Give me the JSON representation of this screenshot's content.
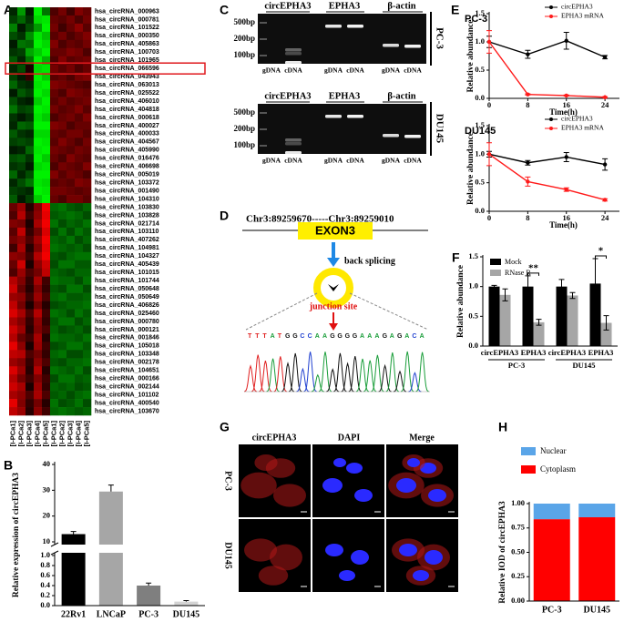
{
  "panel_labels": [
    "A",
    "B",
    "C",
    "D",
    "E",
    "F",
    "G",
    "H"
  ],
  "heatmap": {
    "rows": [
      "hsa_circRNA_000963",
      "hsa_circRNA_000781",
      "hsa_circRNA_101522",
      "hsa_circRNA_000350",
      "hsa_circRNA_405863",
      "hsa_circRNA_100703",
      "hsa_circRNA_101965",
      "hsa_circRNA_066596",
      "hsa_circRNA_043943",
      "hsa_circRNA_063013",
      "hsa_circRNA_025522",
      "hsa_circRNA_406010",
      "hsa_circRNA_404818",
      "hsa_circRNA_000618",
      "hsa_circRNA_400027",
      "hsa_circRNA_400033",
      "hsa_circRNA_404567",
      "hsa_circRNA_405990",
      "hsa_circRNA_016476",
      "hsa_circRNA_406698",
      "hsa_circRNA_005019",
      "hsa_circRNA_103372",
      "hsa_circRNA_001490",
      "hsa_circRNA_104310",
      "hsa_circRNA_103830",
      "hsa_circRNA_103828",
      "hsa_circRNA_021714",
      "hsa_circRNA_103110",
      "hsa_circRNA_407262",
      "hsa_circRNA_104981",
      "hsa_circRNA_104327",
      "hsa_circRNA_405439",
      "hsa_circRNA_101015",
      "hsa_circRNA_101744",
      "hsa_circRNA_050648",
      "hsa_circRNA_050649",
      "hsa_circRNA_406826",
      "hsa_circRNA_025460",
      "hsa_circRNA_000780",
      "hsa_circRNA_000121",
      "hsa_circRNA_001846",
      "hsa_circRNA_105018",
      "hsa_circRNA_103348",
      "hsa_circRNA_002178",
      "hsa_circRNA_104651",
      "hsa_circRNA_000166",
      "hsa_circRNA_002144",
      "hsa_circRNA_101102",
      "hsa_circRNA_400540",
      "hsa_circRNA_103670"
    ],
    "columns": [
      "[I-PCa1]",
      "[I-PCa2]",
      "[I-PCa3]",
      "[I-PCa4]",
      "[I-PCa5]",
      "[I-PCa1]",
      "[I-PCa2]",
      "[I-PCa3]",
      "[I-PCa4]",
      "[I-PCa5]"
    ],
    "range": [
      -2,
      2
    ],
    "colors": [
      "#00ff00",
      "#000000",
      "#ff0000"
    ],
    "highlight_row": 7,
    "highlight_color": "#e0191e",
    "values": [
      [
        -0.3,
        -1.2,
        -0.2,
        -1.9,
        -0.9,
        0.6,
        0.9,
        0.5,
        1.0,
        0.8
      ],
      [
        -0.5,
        -0.8,
        -0.4,
        -1.7,
        -1.8,
        0.8,
        0.7,
        0.9,
        0.6,
        0.9
      ],
      [
        -1.0,
        -0.2,
        -0.6,
        -1.2,
        -1.9,
        0.9,
        0.5,
        0.8,
        1.1,
        0.7
      ],
      [
        -0.6,
        -0.4,
        -1.1,
        -1.8,
        -1.5,
        0.7,
        0.9,
        0.6,
        0.8,
        1.0
      ],
      [
        -0.2,
        -0.9,
        -0.8,
        -1.9,
        -1.7,
        1.0,
        0.6,
        0.8,
        0.7,
        0.9
      ],
      [
        -0.4,
        -0.5,
        -1.3,
        -1.6,
        -1.9,
        0.8,
        0.8,
        1.0,
        0.9,
        0.6
      ],
      [
        -0.7,
        -0.3,
        -0.9,
        -1.9,
        -1.4,
        0.6,
        1.0,
        0.7,
        0.8,
        0.9
      ],
      [
        -0.3,
        -0.6,
        0.2,
        -1.7,
        -1.8,
        0.9,
        0.7,
        0.9,
        0.6,
        0.8
      ],
      [
        -0.5,
        -0.2,
        0.4,
        -1.9,
        -1.6,
        0.7,
        0.8,
        0.6,
        0.9,
        1.0
      ],
      [
        -0.8,
        -0.4,
        -0.3,
        -1.8,
        -1.9,
        1.0,
        0.9,
        0.8,
        0.7,
        0.6
      ],
      [
        -0.2,
        -0.7,
        -0.5,
        -1.9,
        -1.7,
        0.8,
        0.6,
        1.0,
        0.9,
        0.8
      ],
      [
        -0.6,
        -0.3,
        -0.2,
        -1.6,
        -1.9,
        0.7,
        0.9,
        0.7,
        0.8,
        0.9
      ],
      [
        -0.9,
        -0.5,
        -0.6,
        -1.9,
        -1.8,
        0.9,
        0.7,
        0.8,
        1.0,
        0.7
      ],
      [
        -0.4,
        -0.2,
        -0.4,
        -1.8,
        -1.6,
        0.6,
        0.8,
        0.9,
        0.7,
        1.0
      ],
      [
        -0.3,
        -0.8,
        -0.7,
        -1.9,
        -1.9,
        1.0,
        0.9,
        0.6,
        0.8,
        0.8
      ],
      [
        -0.7,
        -0.4,
        -0.3,
        -1.7,
        -1.7,
        0.8,
        0.7,
        0.9,
        0.9,
        0.7
      ],
      [
        -0.5,
        -0.6,
        -0.5,
        -1.9,
        -1.8,
        0.7,
        1.0,
        0.8,
        0.6,
        0.9
      ],
      [
        -0.2,
        -0.3,
        -0.8,
        -1.8,
        -1.9,
        0.9,
        0.8,
        0.7,
        0.9,
        0.8
      ],
      [
        -0.6,
        -0.7,
        -0.4,
        -1.9,
        -1.6,
        0.8,
        0.6,
        1.0,
        0.8,
        0.7
      ],
      [
        -0.4,
        -0.5,
        -0.2,
        -1.7,
        -1.8,
        0.6,
        0.9,
        0.8,
        0.7,
        1.0
      ],
      [
        -0.8,
        -0.3,
        -0.6,
        -1.9,
        -1.9,
        1.0,
        0.7,
        0.9,
        0.8,
        0.6
      ],
      [
        -0.3,
        -0.6,
        -0.9,
        -1.8,
        -1.7,
        0.7,
        0.8,
        0.7,
        1.0,
        0.9
      ],
      [
        -0.5,
        -0.4,
        -0.3,
        -1.9,
        -1.8,
        0.9,
        0.9,
        0.8,
        0.7,
        0.8
      ],
      [
        -0.7,
        -0.2,
        -0.5,
        -1.6,
        -1.9,
        0.8,
        0.6,
        0.9,
        0.9,
        0.7
      ],
      [
        0.8,
        1.2,
        0.3,
        1.0,
        1.9,
        -0.8,
        -0.9,
        -0.7,
        -0.6,
        -0.8
      ],
      [
        0.6,
        1.4,
        0.5,
        1.1,
        1.8,
        -0.7,
        -0.8,
        -0.9,
        -0.8,
        -0.6
      ],
      [
        1.0,
        0.9,
        0.2,
        1.3,
        1.9,
        -0.9,
        -0.6,
        -0.8,
        -0.7,
        -0.9
      ],
      [
        0.7,
        1.5,
        0.4,
        0.9,
        1.7,
        -0.6,
        -0.9,
        -0.6,
        -0.9,
        -0.7
      ],
      [
        0.9,
        1.1,
        0.6,
        1.2,
        1.9,
        -0.8,
        -0.7,
        -0.9,
        -0.6,
        -0.8
      ],
      [
        0.5,
        1.3,
        0.3,
        1.0,
        1.8,
        -0.9,
        -0.8,
        -0.7,
        -0.8,
        -0.6
      ],
      [
        1.1,
        1.0,
        0.5,
        1.4,
        1.9,
        -0.7,
        -0.6,
        -0.8,
        -0.9,
        -0.9
      ],
      [
        0.8,
        1.6,
        0.2,
        1.1,
        1.6,
        -0.6,
        -0.9,
        -0.9,
        -0.7,
        -0.7
      ],
      [
        0.6,
        1.2,
        0.6,
        0.9,
        1.5,
        -0.8,
        -0.7,
        -0.6,
        -0.8,
        -0.8
      ],
      [
        1.4,
        1.0,
        0.4,
        1.3,
        0.5,
        -0.9,
        -0.8,
        -0.8,
        -0.6,
        -0.9
      ],
      [
        1.6,
        0.8,
        0.3,
        1.0,
        0.4,
        -0.7,
        -0.6,
        -0.9,
        -0.9,
        -0.6
      ],
      [
        1.2,
        1.1,
        0.5,
        1.2,
        0.6,
        -0.8,
        -0.9,
        -0.7,
        -0.7,
        -0.8
      ],
      [
        1.5,
        0.9,
        0.2,
        0.9,
        0.3,
        -0.6,
        -0.7,
        -0.8,
        -0.8,
        -0.9
      ],
      [
        1.7,
        1.3,
        0.6,
        1.4,
        0.5,
        -0.9,
        -0.8,
        -0.6,
        -0.9,
        -0.7
      ],
      [
        1.3,
        1.0,
        0.4,
        1.1,
        0.4,
        -0.7,
        -0.9,
        -0.9,
        -0.6,
        -0.8
      ],
      [
        1.6,
        1.2,
        0.3,
        1.0,
        0.6,
        -0.8,
        -0.6,
        -0.7,
        -0.8,
        -0.6
      ],
      [
        1.4,
        0.8,
        0.5,
        1.3,
        0.3,
        -0.9,
        -0.8,
        -0.8,
        -0.7,
        -0.9
      ],
      [
        1.8,
        1.1,
        0.2,
        1.2,
        0.5,
        -0.6,
        -0.7,
        -0.9,
        -0.9,
        -0.7
      ],
      [
        1.5,
        1.4,
        0.6,
        0.9,
        0.4,
        -0.8,
        -0.9,
        -0.6,
        -0.6,
        -0.8
      ],
      [
        1.2,
        1.0,
        0.4,
        1.1,
        0.6,
        -0.7,
        -0.6,
        -0.8,
        -0.8,
        -0.9
      ],
      [
        1.7,
        1.2,
        0.3,
        1.4,
        0.3,
        -0.9,
        -0.8,
        -0.7,
        -0.9,
        -0.6
      ],
      [
        1.4,
        0.9,
        0.5,
        1.0,
        0.5,
        -0.6,
        -0.9,
        -0.9,
        -0.7,
        -0.8
      ],
      [
        1.6,
        1.3,
        0.2,
        1.2,
        0.4,
        -0.8,
        -0.7,
        -0.8,
        -0.6,
        -0.7
      ],
      [
        1.3,
        1.1,
        0.6,
        1.3,
        0.6,
        -0.7,
        -0.8,
        -0.6,
        -0.8,
        -0.9
      ],
      [
        1.8,
        1.0,
        0.4,
        0.9,
        0.3,
        -0.9,
        -0.6,
        -0.7,
        -0.9,
        -0.6
      ],
      [
        1.5,
        1.2,
        0.3,
        1.1,
        0.5,
        -0.8,
        -0.9,
        -0.8,
        -0.7,
        -0.8
      ]
    ]
  },
  "gels": {
    "targets": [
      "circEPHA3",
      "EPHA3",
      "β-actin"
    ],
    "markers": [
      "500bp",
      "200bp",
      "100bp"
    ],
    "lanes": [
      "gDNA",
      "cDNA",
      "gDNA",
      "cDNA",
      "gDNA",
      "cDNA"
    ],
    "cell_lines": [
      "PC-3",
      "DU145"
    ]
  },
  "diagram": {
    "coordinates": "Chr3:89259670-----Chr3:89259010",
    "exon": "EXON3",
    "step": "back splicing",
    "junction": "junction site",
    "sequence": "TTTATGGCCAAGGGGAAAGAGACA"
  },
  "microscopy": {
    "channels": [
      "circEPHA3",
      "DAPI",
      "Merge"
    ],
    "cell_lines": [
      "PC-3",
      "DU145"
    ]
  },
  "chart_data": [
    {
      "type": "bar",
      "ylabel": "Relative expression of circEPHA3",
      "categories": [
        "22Rv1",
        "LNCaP",
        "PC-3",
        "DU145"
      ],
      "values": [
        13,
        29.5,
        0.4,
        0.08
      ],
      "errors": [
        1,
        2.5,
        0.05,
        0.02
      ],
      "colors": [
        "#000000",
        "#a6a6a6",
        "#7f7f7f",
        "#d4d4d4"
      ],
      "ylim": [
        0,
        40
      ],
      "axis_break": [
        1,
        10
      ],
      "yticks": [
        {
          "value": 0,
          "label": "0.0"
        },
        0.2,
        0.4,
        0.6,
        0.8,
        {
          "value": 1,
          "label": "1.0"
        },
        10,
        20,
        30,
        40
      ]
    },
    {
      "type": "line",
      "title": "PC-3",
      "xlabel": "Time(h)",
      "ylabel": "Relative abundance",
      "legend": "upper right",
      "x": [
        0,
        8,
        16,
        24
      ],
      "xlim": [
        0,
        27
      ],
      "xticks": [
        0,
        8,
        16,
        24
      ],
      "ylim": [
        0,
        1.5
      ],
      "yticks": [
        {
          "value": 0,
          "label": "0.0"
        },
        0.5,
        {
          "value": 1,
          "label": "1.0"
        },
        1.5
      ],
      "series": [
        {
          "name": "circEPHA3",
          "color": "#000000",
          "values": [
            1.0,
            0.78,
            1.02,
            0.73
          ],
          "errors": [
            0.1,
            0.07,
            0.15,
            0.03
          ]
        },
        {
          "name": "EPHA3 mRNA",
          "color": "#ff1a1a",
          "values": [
            1.0,
            0.07,
            0.05,
            0.02
          ],
          "errors": [
            0.2,
            0.01,
            0.01,
            0.01
          ]
        }
      ]
    },
    {
      "type": "line",
      "title": "DU145",
      "xlabel": "Time(h)",
      "ylabel": "Relative abundance",
      "legend": "upper right",
      "x": [
        0,
        8,
        16,
        24
      ],
      "xlim": [
        0,
        27
      ],
      "xticks": [
        0,
        8,
        16,
        24
      ],
      "ylim": [
        0,
        1.5
      ],
      "yticks": [
        {
          "value": 0,
          "label": "0.0"
        },
        0.5,
        {
          "value": 1,
          "label": "1.0"
        },
        1.5
      ],
      "series": [
        {
          "name": "circEPHA3",
          "color": "#000000",
          "values": [
            1.0,
            0.85,
            0.95,
            0.82
          ],
          "errors": [
            0.05,
            0.04,
            0.08,
            0.1
          ]
        },
        {
          "name": "EPHA3 mRNA",
          "color": "#ff1a1a",
          "values": [
            1.0,
            0.52,
            0.38,
            0.2
          ],
          "errors": [
            0.2,
            0.08,
            0.03,
            0.02
          ]
        }
      ]
    },
    {
      "type": "bar",
      "ylabel": "Relative abundance",
      "legend": "upper left",
      "categories": [
        "circEPHA3",
        "EPHA3",
        "circEPHA3",
        "EPHA3"
      ],
      "groups": [
        "PC-3",
        "DU145"
      ],
      "ylim": [
        0,
        1.5
      ],
      "yticks": [
        {
          "value": 0,
          "label": "0.0"
        },
        0.5,
        {
          "value": 1,
          "label": "1.0"
        },
        1.5
      ],
      "series": [
        {
          "name": "Mock",
          "color": "#000000",
          "values": [
            1.0,
            1.0,
            1.0,
            1.05
          ],
          "errors": [
            0.02,
            0.18,
            0.12,
            0.42
          ]
        },
        {
          "name": "RNase R",
          "color": "#a6a6a6",
          "values": [
            0.86,
            0.4,
            0.85,
            0.39
          ],
          "errors": [
            0.1,
            0.05,
            0.05,
            0.12
          ]
        }
      ],
      "annotations": [
        {
          "category": 1,
          "text": "**"
        },
        {
          "category": 3,
          "text": "*"
        }
      ]
    },
    {
      "type": "bar",
      "stacked": true,
      "ylabel": "Relative IOD of circEPHA3",
      "legend": "upper left",
      "categories": [
        "PC-3",
        "DU145"
      ],
      "ylim": [
        0,
        1
      ],
      "yticks": [
        {
          "value": 0,
          "label": "0.00"
        },
        0.25,
        {
          "value": 0.5,
          "label": "0.50"
        },
        0.75,
        {
          "value": 1,
          "label": "1.00"
        }
      ],
      "series": [
        {
          "name": "Nuclear",
          "color": "#5aa5e8",
          "values": [
            0.16,
            0.14
          ]
        },
        {
          "name": "Cytoplasm",
          "color": "#ff0000",
          "values": [
            0.84,
            0.86
          ]
        }
      ]
    }
  ]
}
